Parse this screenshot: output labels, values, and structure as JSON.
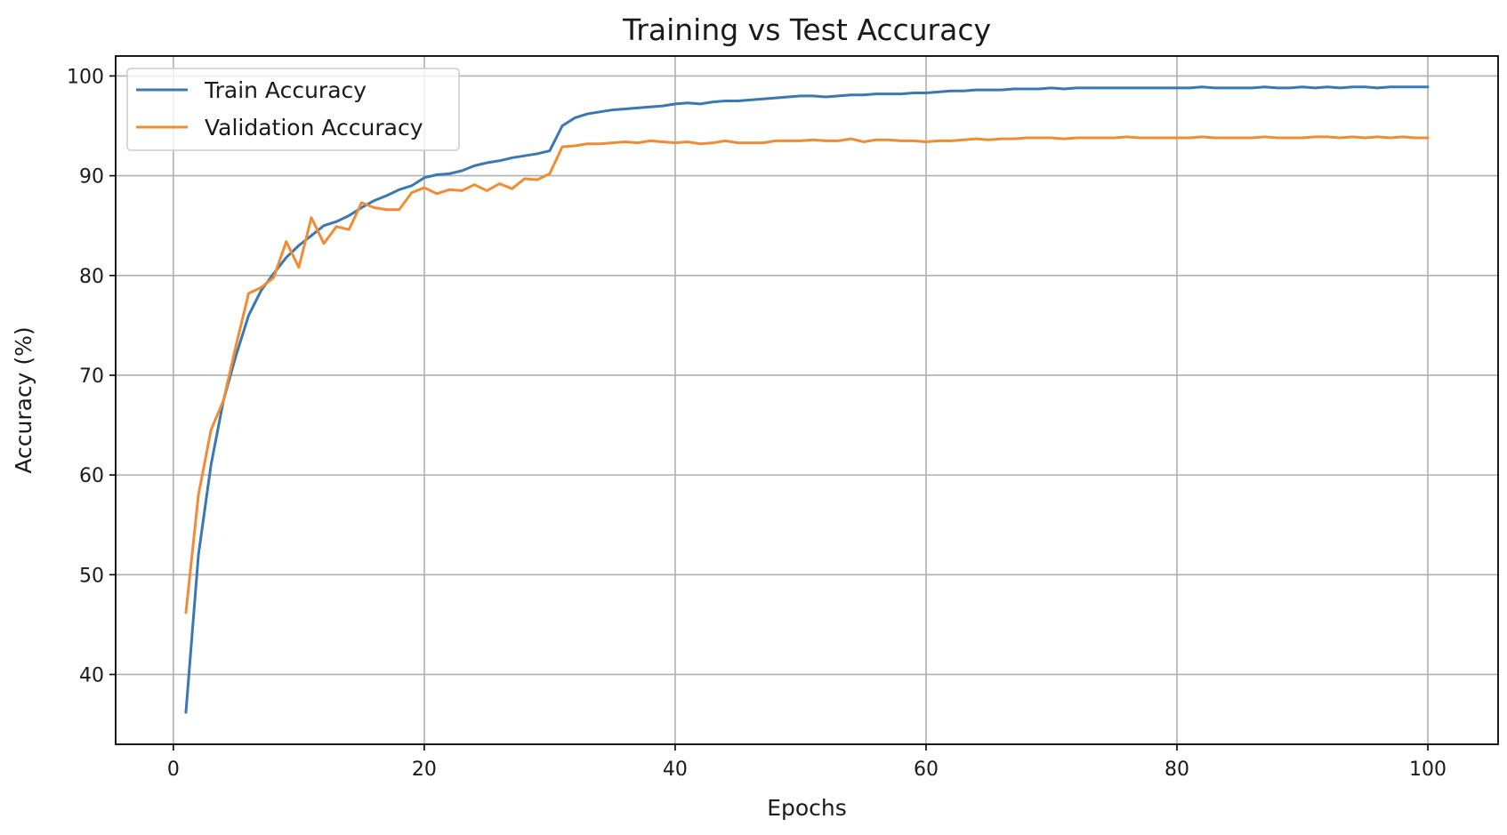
{
  "chart_data": {
    "type": "line",
    "title": "Training vs Test Accuracy",
    "xlabel": "Epochs",
    "ylabel": "Accuracy (%)",
    "xlim": [
      -4.6,
      105.6
    ],
    "ylim": [
      33.0,
      102.0
    ],
    "xticks": [
      0,
      20,
      40,
      60,
      80,
      100
    ],
    "yticks": [
      40,
      50,
      60,
      70,
      80,
      90,
      100
    ],
    "grid": true,
    "legend_position": "upper-left",
    "x": [
      1,
      2,
      3,
      4,
      5,
      6,
      7,
      8,
      9,
      10,
      11,
      12,
      13,
      14,
      15,
      16,
      17,
      18,
      19,
      20,
      21,
      22,
      23,
      24,
      25,
      26,
      27,
      28,
      29,
      30,
      31,
      32,
      33,
      34,
      35,
      36,
      37,
      38,
      39,
      40,
      41,
      42,
      43,
      44,
      45,
      46,
      47,
      48,
      49,
      50,
      51,
      52,
      53,
      54,
      55,
      56,
      57,
      58,
      59,
      60,
      61,
      62,
      63,
      64,
      65,
      66,
      67,
      68,
      69,
      70,
      71,
      72,
      73,
      74,
      75,
      76,
      77,
      78,
      79,
      80,
      81,
      82,
      83,
      84,
      85,
      86,
      87,
      88,
      89,
      90,
      91,
      92,
      93,
      94,
      95,
      96,
      97,
      98,
      99,
      100
    ],
    "series": [
      {
        "name": "Train Accuracy",
        "color": "#3a78b4",
        "values": [
          36.2,
          52.0,
          61.0,
          67.5,
          72.0,
          76.0,
          78.5,
          80.2,
          81.8,
          83.0,
          84.0,
          85.0,
          85.4,
          86.0,
          86.8,
          87.5,
          88.0,
          88.6,
          89.0,
          89.8,
          90.1,
          90.2,
          90.5,
          91.0,
          91.3,
          91.5,
          91.8,
          92.0,
          92.2,
          92.5,
          95.0,
          95.8,
          96.2,
          96.4,
          96.6,
          96.7,
          96.8,
          96.9,
          97.0,
          97.2,
          97.3,
          97.2,
          97.4,
          97.5,
          97.5,
          97.6,
          97.7,
          97.8,
          97.9,
          98.0,
          98.0,
          97.9,
          98.0,
          98.1,
          98.1,
          98.2,
          98.2,
          98.2,
          98.3,
          98.3,
          98.4,
          98.5,
          98.5,
          98.6,
          98.6,
          98.6,
          98.7,
          98.7,
          98.7,
          98.8,
          98.7,
          98.8,
          98.8,
          98.8,
          98.8,
          98.8,
          98.8,
          98.8,
          98.8,
          98.8,
          98.8,
          98.9,
          98.8,
          98.8,
          98.8,
          98.8,
          98.9,
          98.8,
          98.8,
          98.9,
          98.8,
          98.9,
          98.8,
          98.9,
          98.9,
          98.8,
          98.9,
          98.9,
          98.9,
          98.9
        ]
      },
      {
        "name": "Validation Accuracy",
        "color": "#f08c35",
        "values": [
          46.2,
          58.0,
          64.5,
          67.5,
          73.0,
          78.2,
          78.8,
          79.8,
          83.4,
          80.8,
          85.8,
          83.2,
          84.9,
          84.6,
          87.3,
          86.8,
          86.6,
          86.6,
          88.3,
          88.8,
          88.2,
          88.6,
          88.5,
          89.1,
          88.5,
          89.2,
          88.7,
          89.7,
          89.6,
          90.2,
          92.9,
          93.0,
          93.2,
          93.2,
          93.3,
          93.4,
          93.3,
          93.5,
          93.4,
          93.3,
          93.4,
          93.2,
          93.3,
          93.5,
          93.3,
          93.3,
          93.3,
          93.5,
          93.5,
          93.5,
          93.6,
          93.5,
          93.5,
          93.7,
          93.4,
          93.6,
          93.6,
          93.5,
          93.5,
          93.4,
          93.5,
          93.5,
          93.6,
          93.7,
          93.6,
          93.7,
          93.7,
          93.8,
          93.8,
          93.8,
          93.7,
          93.8,
          93.8,
          93.8,
          93.8,
          93.9,
          93.8,
          93.8,
          93.8,
          93.8,
          93.8,
          93.9,
          93.8,
          93.8,
          93.8,
          93.8,
          93.9,
          93.8,
          93.8,
          93.8,
          93.9,
          93.9,
          93.8,
          93.9,
          93.8,
          93.9,
          93.8,
          93.9,
          93.8,
          93.8
        ]
      }
    ]
  }
}
